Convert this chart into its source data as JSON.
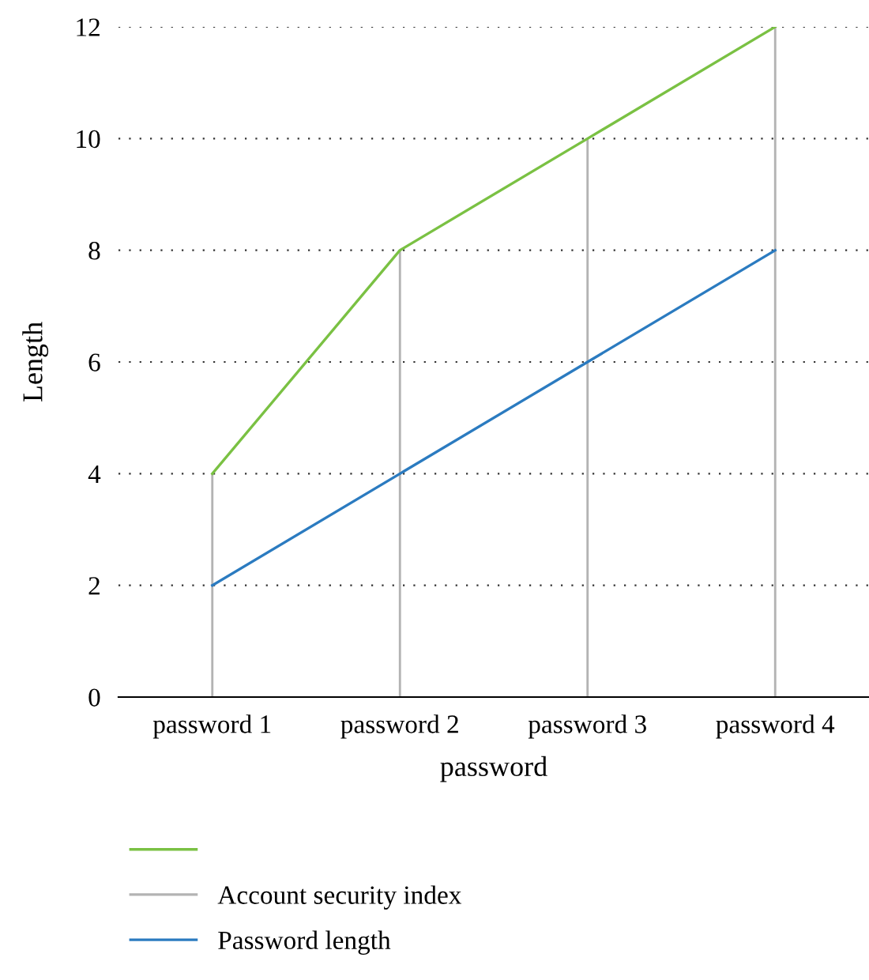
{
  "chart_data": {
    "type": "line",
    "xlabel": "password",
    "ylabel": "Length",
    "categories": [
      "password 1",
      "password 2",
      "password 3",
      "password 4"
    ],
    "series": [
      {
        "color": "#7ac143",
        "values": [
          4,
          8,
          10,
          12
        ]
      },
      {
        "name": "Account security index",
        "type": "bar",
        "color": "#b3b3b3",
        "values": [
          4,
          8,
          10,
          12
        ]
      },
      {
        "name": "Password length",
        "color": "#2b7bc0",
        "values": [
          2,
          4,
          6,
          8
        ]
      }
    ],
    "ylim": [
      0,
      12
    ],
    "yticks": [
      0,
      2,
      4,
      6,
      8,
      10,
      12
    ],
    "grid": "y",
    "legend": "bottom"
  }
}
